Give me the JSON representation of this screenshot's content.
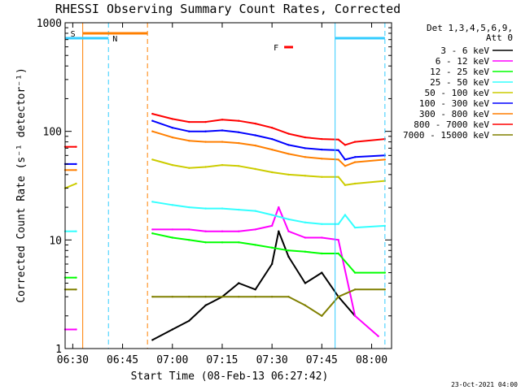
{
  "chart_data": {
    "type": "line",
    "title": "RHESSI Observing Summary Count Rates, Corrected",
    "xlabel": "Start Time (08-Feb-13 06:27:42)",
    "ylabel": "Corrected Count Rate (s⁻¹ detector⁻¹)",
    "y_scale": "log",
    "ylim": [
      1,
      1000
    ],
    "xlim": [
      "06:27:42",
      "08:06:00"
    ],
    "x_ticks": [
      "06:30",
      "06:45",
      "07:00",
      "07:15",
      "07:30",
      "07:45",
      "08:00"
    ],
    "y_ticks": [
      "1",
      "10",
      "100",
      "1000"
    ],
    "legend_title": [
      "Det 1,3,4,5,6,9,",
      "Att 0"
    ],
    "legend_position": "right",
    "footer_date": "23-Oct-2021 04:00",
    "markers": [
      {
        "label": "S",
        "color": "#ff7f00",
        "line_type": "solid",
        "time": "06:33:00"
      },
      {
        "label": "S",
        "color": "#ff7f00",
        "line_type": "dashed",
        "time": "06:52:30"
      },
      {
        "label": "N",
        "color": "#33ccff",
        "line_type": "solid",
        "time": "06:27:42"
      },
      {
        "label": "N",
        "color": "#33ccff",
        "line_type": "dashed",
        "time": "06:40:45"
      },
      {
        "label": "N",
        "color": "#33ccff",
        "line_type": "solid",
        "time": "07:49:00"
      },
      {
        "label": "N",
        "color": "#33ccff",
        "line_type": "dashed",
        "time": "08:04:00"
      },
      {
        "label": "F",
        "color": "#ff0000",
        "line_type": "bar",
        "time": "07:35:00"
      }
    ],
    "intervals": [
      {
        "label": "S",
        "color": "#ff7f00",
        "start": "06:33:00",
        "end": "06:52:30"
      },
      {
        "label": "N",
        "color": "#33ccff",
        "start": "06:27:42",
        "end": "06:40:45"
      },
      {
        "label": "N",
        "color": "#33ccff",
        "start": "07:49:00",
        "end": "08:04:00"
      },
      {
        "label": "F",
        "color": "#ff0000",
        "start": "07:33:40",
        "end": "07:36:20"
      }
    ],
    "series": [
      {
        "name": "3 - 6 keV",
        "color": "#000000",
        "points": [
          [
            "06:54:00",
            1.2
          ],
          [
            "07:00:00",
            1.5
          ],
          [
            "07:05:00",
            1.8
          ],
          [
            "07:10:00",
            2.5
          ],
          [
            "07:15:00",
            3.0
          ],
          [
            "07:20:00",
            4.0
          ],
          [
            "07:25:00",
            3.5
          ],
          [
            "07:30:00",
            6.0
          ],
          [
            "07:32:00",
            12.0
          ],
          [
            "07:35:00",
            7.0
          ],
          [
            "07:40:00",
            4.0
          ],
          [
            "07:45:00",
            5.0
          ],
          [
            "07:50:00",
            3.0
          ],
          [
            "07:55:00",
            2.0
          ]
        ]
      },
      {
        "name": "6 - 12 keV",
        "color": "#ff00ff",
        "points": [
          [
            "06:27:42",
            1.5
          ],
          [
            "06:31:00",
            1.5
          ],
          [
            "06:54:00",
            12.5
          ],
          [
            "07:00:00",
            12.5
          ],
          [
            "07:05:00",
            12.5
          ],
          [
            "07:10:00",
            12.0
          ],
          [
            "07:15:00",
            12.0
          ],
          [
            "07:20:00",
            12.0
          ],
          [
            "07:25:00",
            12.5
          ],
          [
            "07:30:00",
            13.5
          ],
          [
            "07:32:00",
            20.0
          ],
          [
            "07:35:00",
            12.0
          ],
          [
            "07:40:00",
            10.5
          ],
          [
            "07:45:00",
            10.5
          ],
          [
            "07:50:00",
            10.0
          ],
          [
            "07:55:00",
            2.0
          ],
          [
            "08:02:00",
            1.3
          ]
        ]
      },
      {
        "name": "12 - 25 keV",
        "color": "#00ff00",
        "points": [
          [
            "06:27:42",
            4.5
          ],
          [
            "06:31:00",
            4.5
          ],
          [
            "06:54:00",
            11.5
          ],
          [
            "07:00:00",
            10.5
          ],
          [
            "07:05:00",
            10.0
          ],
          [
            "07:10:00",
            9.5
          ],
          [
            "07:15:00",
            9.5
          ],
          [
            "07:20:00",
            9.5
          ],
          [
            "07:25:00",
            9.0
          ],
          [
            "07:30:00",
            8.5
          ],
          [
            "07:35:00",
            8.0
          ],
          [
            "07:40:00",
            7.8
          ],
          [
            "07:45:00",
            7.5
          ],
          [
            "07:50:00",
            7.5
          ],
          [
            "07:55:00",
            5.0
          ],
          [
            "08:04:00",
            5.0
          ]
        ]
      },
      {
        "name": "25 - 50 keV",
        "color": "#33ffff",
        "points": [
          [
            "06:27:42",
            12.0
          ],
          [
            "06:31:00",
            12.0
          ],
          [
            "06:54:00",
            22.5
          ],
          [
            "07:00:00",
            21.0
          ],
          [
            "07:05:00",
            20.0
          ],
          [
            "07:10:00",
            19.5
          ],
          [
            "07:15:00",
            19.5
          ],
          [
            "07:20:00",
            19.0
          ],
          [
            "07:25:00",
            18.5
          ],
          [
            "07:30:00",
            17.0
          ],
          [
            "07:35:00",
            15.5
          ],
          [
            "07:40:00",
            14.5
          ],
          [
            "07:45:00",
            14.0
          ],
          [
            "07:50:00",
            14.0
          ],
          [
            "07:52:00",
            17.0
          ],
          [
            "07:55:00",
            13.0
          ],
          [
            "08:04:00",
            13.5
          ]
        ]
      },
      {
        "name": "50 - 100 keV",
        "color": "#cccc00",
        "points": [
          [
            "06:27:42",
            30.0
          ],
          [
            "06:31:00",
            33.0
          ],
          [
            "06:54:00",
            55.0
          ],
          [
            "07:00:00",
            49.0
          ],
          [
            "07:05:00",
            46.0
          ],
          [
            "07:10:00",
            47.0
          ],
          [
            "07:15:00",
            49.0
          ],
          [
            "07:20:00",
            48.0
          ],
          [
            "07:25:00",
            45.0
          ],
          [
            "07:30:00",
            42.0
          ],
          [
            "07:35:00",
            40.0
          ],
          [
            "07:40:00",
            39.0
          ],
          [
            "07:45:00",
            38.0
          ],
          [
            "07:50:00",
            38.0
          ],
          [
            "07:52:00",
            32.0
          ],
          [
            "07:55:00",
            33.0
          ],
          [
            "08:04:00",
            35.0
          ]
        ]
      },
      {
        "name": "100 - 300 keV",
        "color": "#0000ff",
        "points": [
          [
            "06:27:42",
            50.0
          ],
          [
            "06:31:00",
            50.0
          ],
          [
            "06:54:00",
            125.0
          ],
          [
            "07:00:00",
            108.0
          ],
          [
            "07:05:00",
            100.0
          ],
          [
            "07:10:00",
            100.0
          ],
          [
            "07:15:00",
            102.0
          ],
          [
            "07:20:00",
            98.0
          ],
          [
            "07:25:00",
            92.0
          ],
          [
            "07:30:00",
            85.0
          ],
          [
            "07:35:00",
            75.0
          ],
          [
            "07:40:00",
            70.0
          ],
          [
            "07:45:00",
            68.0
          ],
          [
            "07:50:00",
            67.0
          ],
          [
            "07:52:00",
            55.0
          ],
          [
            "07:55:00",
            58.0
          ],
          [
            "08:04:00",
            60.0
          ]
        ]
      },
      {
        "name": "300 - 800 keV",
        "color": "#ff7f00",
        "points": [
          [
            "06:27:42",
            44.0
          ],
          [
            "06:31:00",
            44.0
          ],
          [
            "06:54:00",
            100.0
          ],
          [
            "07:00:00",
            88.0
          ],
          [
            "07:05:00",
            82.0
          ],
          [
            "07:10:00",
            80.0
          ],
          [
            "07:15:00",
            80.0
          ],
          [
            "07:20:00",
            78.0
          ],
          [
            "07:25:00",
            74.0
          ],
          [
            "07:30:00",
            68.0
          ],
          [
            "07:35:00",
            62.0
          ],
          [
            "07:40:00",
            58.0
          ],
          [
            "07:45:00",
            56.0
          ],
          [
            "07:50:00",
            55.0
          ],
          [
            "07:52:00",
            48.0
          ],
          [
            "07:55:00",
            52.0
          ],
          [
            "08:04:00",
            55.0
          ]
        ]
      },
      {
        "name": "800 - 7000 keV",
        "color": "#ff0000",
        "points": [
          [
            "06:27:42",
            72.0
          ],
          [
            "06:31:00",
            72.0
          ],
          [
            "06:54:00",
            145.0
          ],
          [
            "07:00:00",
            130.0
          ],
          [
            "07:05:00",
            122.0
          ],
          [
            "07:10:00",
            122.0
          ],
          [
            "07:15:00",
            128.0
          ],
          [
            "07:20:00",
            125.0
          ],
          [
            "07:25:00",
            118.0
          ],
          [
            "07:30:00",
            108.0
          ],
          [
            "07:35:00",
            95.0
          ],
          [
            "07:40:00",
            88.0
          ],
          [
            "07:45:00",
            85.0
          ],
          [
            "07:50:00",
            84.0
          ],
          [
            "07:52:00",
            75.0
          ],
          [
            "07:55:00",
            80.0
          ],
          [
            "08:04:00",
            85.0
          ]
        ]
      },
      {
        "name": "7000 - 15000 keV",
        "color": "#808000",
        "points": [
          [
            "06:27:42",
            3.5
          ],
          [
            "06:31:00",
            3.5
          ],
          [
            "06:54:00",
            3.0
          ],
          [
            "07:00:00",
            3.0
          ],
          [
            "07:05:00",
            3.0
          ],
          [
            "07:10:00",
            3.0
          ],
          [
            "07:15:00",
            3.0
          ],
          [
            "07:20:00",
            3.0
          ],
          [
            "07:25:00",
            3.0
          ],
          [
            "07:30:00",
            3.0
          ],
          [
            "07:35:00",
            3.0
          ],
          [
            "07:40:00",
            2.5
          ],
          [
            "07:45:00",
            2.0
          ],
          [
            "07:50:00",
            3.0
          ],
          [
            "07:55:00",
            3.5
          ],
          [
            "08:04:00",
            3.5
          ]
        ]
      }
    ]
  }
}
